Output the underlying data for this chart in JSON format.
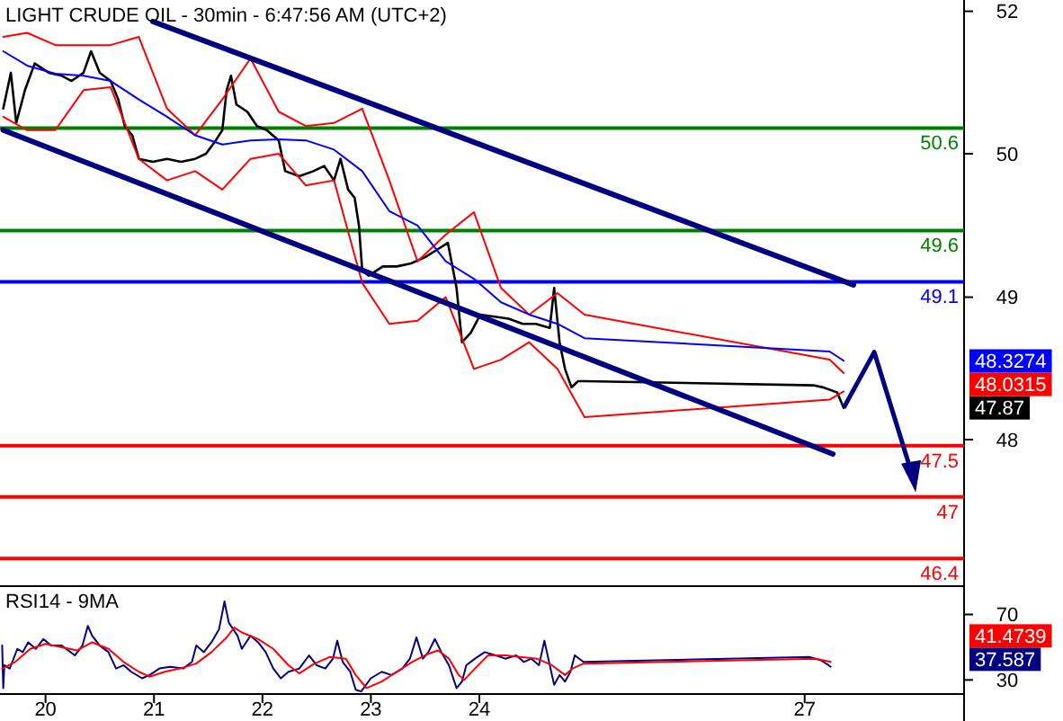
{
  "chart_data": [
    {
      "type": "line",
      "title": "LIGHT CRUDE OIL - 30min - 6:47:56 AM (UTC+2)",
      "xlim": [
        19.58,
        28.47
      ],
      "ylim": [
        46.13,
        51.85
      ],
      "yticks": [
        {
          "value": 51.74,
          "label": "52"
        },
        {
          "value": 50.35,
          "label": "50"
        },
        {
          "value": 48.95,
          "label": "49"
        },
        {
          "value": 47.56,
          "label": "48"
        }
      ],
      "tick_labels": "y",
      "series": [
        {
          "color": "#000000",
          "x": [
            19.61,
            19.68,
            19.73,
            19.81,
            19.9,
            20.03,
            20.15,
            20.24,
            20.35,
            20.42,
            20.5,
            20.6,
            20.67,
            20.73,
            20.8,
            20.86,
            20.99,
            21.12,
            21.25,
            21.38,
            21.48,
            21.57,
            21.63,
            21.67,
            21.71,
            21.76,
            21.86,
            21.95,
            22.04,
            22.15,
            22.21,
            22.34,
            22.47,
            22.57,
            22.66,
            22.72,
            22.79,
            22.85,
            22.89,
            22.92,
            22.98,
            23.11,
            23.24,
            23.37,
            23.5,
            23.62,
            23.71,
            23.79,
            23.84,
            23.92,
            24.01,
            24.14,
            24.27,
            24.4,
            24.52,
            24.65,
            24.69,
            24.74,
            24.79,
            24.85,
            24.91,
            24.97,
            27.08,
            27.17,
            27.3,
            27.36
          ],
          "values": [
            50.79,
            51.14,
            50.65,
            50.97,
            51.23,
            51.14,
            51.11,
            51.06,
            51.14,
            51.35,
            51.14,
            51.06,
            50.88,
            50.62,
            50.53,
            50.3,
            50.27,
            50.3,
            50.27,
            50.3,
            50.35,
            50.48,
            50.58,
            50.97,
            51.11,
            50.83,
            50.76,
            50.62,
            50.58,
            50.48,
            50.18,
            50.13,
            50.18,
            50.23,
            50.09,
            50.3,
            50.0,
            49.92,
            49.65,
            49.21,
            49.16,
            49.25,
            49.25,
            49.28,
            49.34,
            49.42,
            49.48,
            49.04,
            48.51,
            48.6,
            48.78,
            48.76,
            48.74,
            48.69,
            48.69,
            48.65,
            49.04,
            48.51,
            48.25,
            48.07,
            48.13,
            48.13,
            48.09,
            48.07,
            48.02,
            47.87
          ]
        },
        {
          "color": "#ff0000",
          "x": [
            19.61,
            19.83,
            20.09,
            20.35,
            20.6,
            20.86,
            21.12,
            21.38,
            21.63,
            21.89,
            22.15,
            22.4,
            22.66,
            22.92,
            23.17,
            23.43,
            23.69,
            23.95,
            24.2,
            24.46,
            24.72,
            24.97,
            27.23,
            27.36
          ],
          "values": [
            51.49,
            51.53,
            51.41,
            51.41,
            51.41,
            51.49,
            50.79,
            50.53,
            50.88,
            51.28,
            50.76,
            50.62,
            50.65,
            50.79,
            50.09,
            49.3,
            49.56,
            49.78,
            49.04,
            48.78,
            48.99,
            48.78,
            48.34,
            48.21
          ]
        },
        {
          "color": "#0000ff",
          "x": [
            19.61,
            19.83,
            20.09,
            20.35,
            20.6,
            20.86,
            21.12,
            21.38,
            21.63,
            21.89,
            22.15,
            22.4,
            22.66,
            22.92,
            23.17,
            23.43,
            23.69,
            23.95,
            24.2,
            24.46,
            24.72,
            24.97,
            27.23,
            27.36
          ],
          "values": [
            51.35,
            51.21,
            51.13,
            51.11,
            51.06,
            50.88,
            50.71,
            50.53,
            50.44,
            50.48,
            50.49,
            50.48,
            50.39,
            50.18,
            49.79,
            49.65,
            49.3,
            49.13,
            48.9,
            48.78,
            48.69,
            48.55,
            48.42,
            48.33
          ]
        },
        {
          "color": "#ff0000",
          "x": [
            19.61,
            19.83,
            20.09,
            20.35,
            20.6,
            20.86,
            21.12,
            21.38,
            21.63,
            21.89,
            22.15,
            22.4,
            22.66,
            22.92,
            23.17,
            23.43,
            23.69,
            23.95,
            24.2,
            24.46,
            24.72,
            24.97,
            27.23,
            27.36
          ],
          "values": [
            50.71,
            50.58,
            50.58,
            50.97,
            51.0,
            50.3,
            50.09,
            50.18,
            50.0,
            50.3,
            50.35,
            50.04,
            50.09,
            49.09,
            48.69,
            48.72,
            48.95,
            48.25,
            48.34,
            48.51,
            48.25,
            47.78,
            47.95,
            48.03
          ]
        },
        {
          "color": "#000080",
          "x": [
            20.99,
            27.45
          ],
          "values": [
            51.64,
            49.07
          ]
        },
        {
          "color": "#000080",
          "x": [
            19.61,
            27.26
          ],
          "values": [
            50.58,
            47.42
          ]
        }
      ],
      "ref_lines": [
        {
          "axis": "y",
          "value": 50.6,
          "label": "50.6",
          "color": "#008000"
        },
        {
          "axis": "y",
          "value": 49.6,
          "label": "49.6",
          "color": "#008000"
        },
        {
          "axis": "y",
          "value": 49.1,
          "label": "49.1",
          "color": "#0000ff"
        },
        {
          "axis": "y",
          "value": 47.5,
          "label": "47.5",
          "color": "#ff0000"
        },
        {
          "axis": "y",
          "value": 47,
          "label": "47",
          "color": "#ff0000"
        },
        {
          "axis": "y",
          "value": 46.4,
          "label": "46.4",
          "color": "#ff0000"
        }
      ],
      "annotations": [
        "48.3274",
        "48.0315",
        "47.87"
      ]
    },
    {
      "type": "line",
      "title": "RSI14 - 9MA",
      "xlim": [
        19.58,
        28.47
      ],
      "xticks": [
        20,
        21,
        22,
        23,
        24,
        27
      ],
      "ylim": [
        21.4,
        87.3
      ],
      "yticks": [
        70,
        30
      ],
      "series": [
        {
          "color": "#000080",
          "x": [
            19.6,
            19.61,
            19.62,
            19.67,
            19.74,
            19.79,
            19.84,
            19.91,
            19.98,
            20.05,
            20.15,
            20.27,
            20.34,
            20.39,
            20.43,
            20.5,
            20.58,
            20.65,
            20.72,
            20.79,
            20.89,
            20.96,
            21.05,
            21.15,
            21.27,
            21.35,
            21.39,
            21.46,
            21.53,
            21.6,
            21.65,
            21.69,
            21.77,
            21.81,
            21.89,
            21.96,
            22.03,
            22.1,
            22.17,
            22.24,
            22.34,
            22.43,
            22.5,
            22.58,
            22.65,
            22.69,
            22.74,
            22.81,
            22.86,
            22.91,
            23.0,
            23.1,
            23.19,
            23.29,
            23.36,
            23.42,
            23.48,
            23.53,
            23.59,
            23.65,
            23.72,
            23.79,
            23.84,
            23.88,
            23.96,
            24.05,
            24.15,
            24.24,
            24.34,
            24.41,
            24.48,
            24.55,
            24.6,
            24.65,
            24.69,
            24.74,
            24.79,
            24.84,
            24.88,
            24.96,
            27.05,
            27.15,
            27.22,
            27.24
          ],
          "values": [
            51,
            25,
            39,
            37,
            49,
            47,
            53,
            49,
            55,
            51,
            51,
            45,
            51,
            63,
            57,
            51,
            47,
            37,
            39,
            35,
            31,
            33,
            37,
            38,
            37,
            41,
            51,
            47,
            53,
            61,
            78,
            65,
            57,
            49,
            57,
            53,
            47,
            37,
            31,
            35,
            37,
            45,
            39,
            37,
            43,
            54,
            41,
            35,
            24,
            23,
            31,
            35,
            33,
            37,
            43,
            56,
            43,
            47,
            55,
            47,
            39,
            25,
            29,
            39,
            43,
            47,
            45,
            43,
            45,
            41,
            43,
            39,
            54,
            39,
            27,
            33,
            29,
            35,
            45,
            41,
            44,
            42,
            39,
            38
          ]
        },
        {
          "color": "#ff0000",
          "x": [
            19.6,
            19.72,
            19.86,
            20.0,
            20.15,
            20.29,
            20.43,
            20.58,
            20.72,
            20.86,
            20.96,
            21.1,
            21.24,
            21.39,
            21.53,
            21.67,
            21.74,
            21.81,
            21.96,
            22.1,
            22.24,
            22.34,
            22.48,
            22.62,
            22.77,
            22.86,
            22.96,
            23.1,
            23.24,
            23.38,
            23.53,
            23.62,
            23.72,
            23.81,
            23.86,
            23.96,
            24.08,
            24.24,
            24.38,
            24.53,
            24.67,
            24.79,
            24.86,
            24.96,
            27.1,
            27.24
          ],
          "values": [
            37,
            41,
            49,
            52,
            50,
            48,
            53,
            49,
            41,
            35,
            32,
            35,
            37,
            40,
            47,
            56,
            62,
            59,
            55,
            49,
            39,
            34,
            40,
            44,
            43,
            33,
            25,
            29,
            35,
            41,
            46,
            48,
            43,
            33,
            30,
            37,
            45,
            45,
            44,
            43,
            39,
            33,
            37,
            40,
            43,
            41
          ]
        }
      ],
      "annotations": [
        "41.4739",
        "37.587"
      ]
    }
  ]
}
